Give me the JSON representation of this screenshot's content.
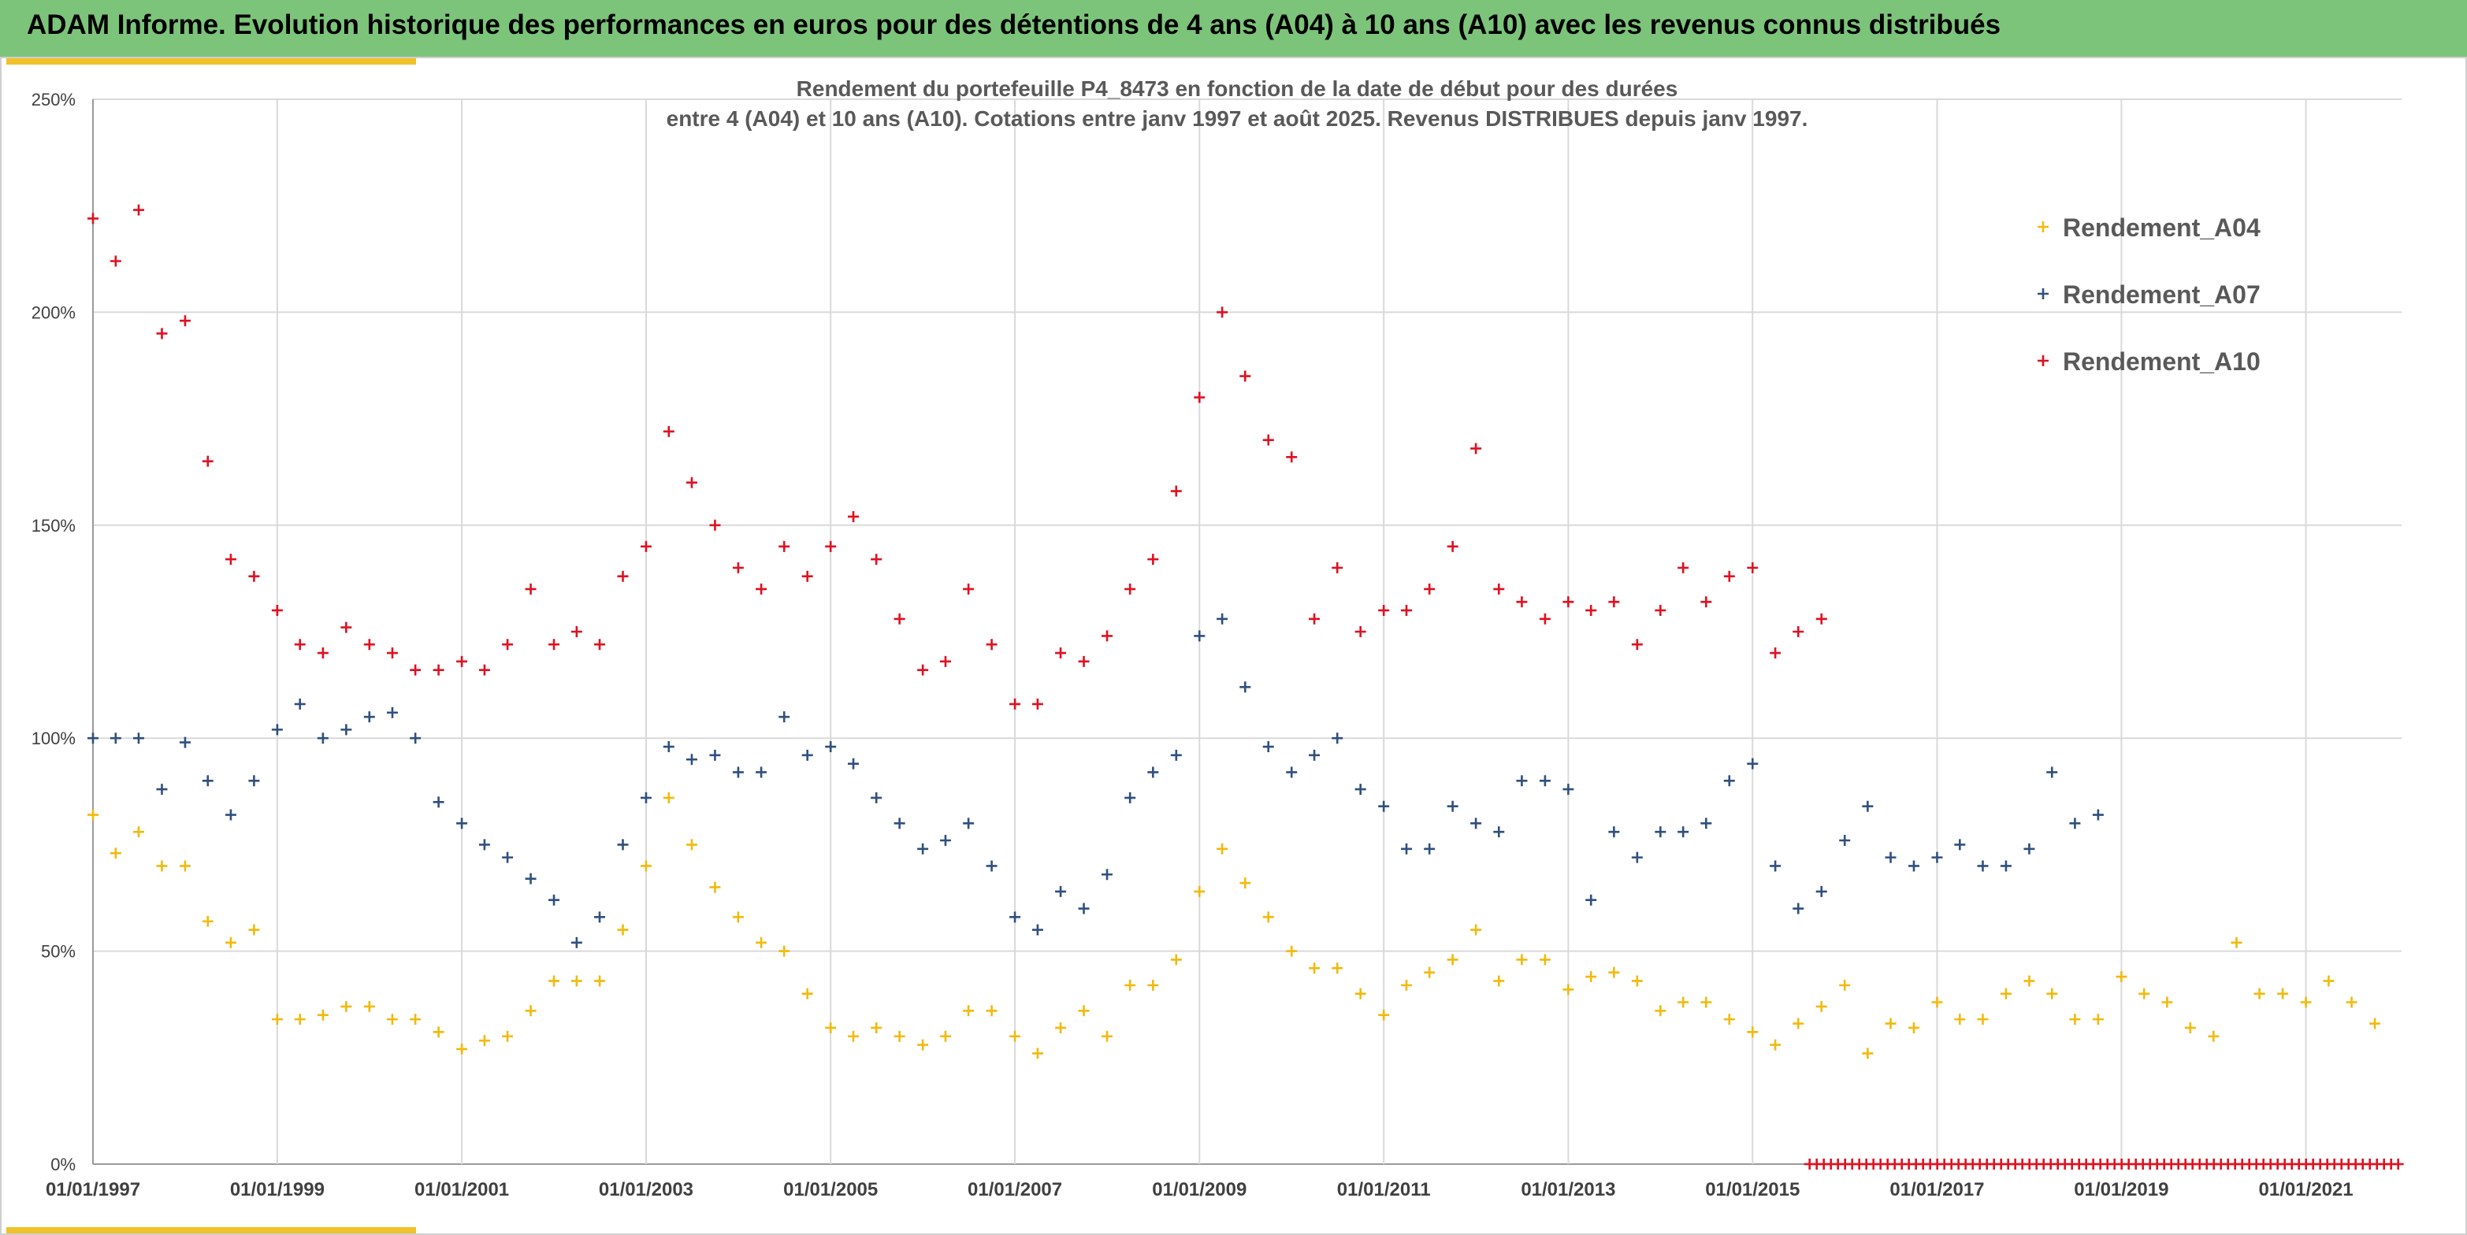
{
  "banner": {
    "title": "ADAM Informe. Evolution historique des performances en euros pour des détentions de 4 ans (A04) à 10 ans (A10) avec les revenus connus distribués"
  },
  "colors": {
    "banner_bg": "#7cc47a",
    "accent": "#f0c12b",
    "A04": "#f2b90c",
    "A07": "#2f4f7f",
    "A10": "#e01020",
    "grid": "#d9d9d9",
    "title_text": "#595959"
  },
  "chart_data": {
    "type": "scatter",
    "marker": "plus",
    "title": "Rendement du portefeuille P4_8473 en fonction de la date de début pour des durées",
    "subtitle": "entre 4 (A04) et 10 ans (A10). Cotations entre janv 1997 et août 2025. Revenus DISTRIBUES depuis janv 1997.",
    "xlabel": "",
    "ylabel": "",
    "xlim": [
      "1997-01-01",
      "2022-01-15"
    ],
    "ylim": [
      0,
      2.5
    ],
    "y_ticks": [
      {
        "value": 0,
        "label": "0%"
      },
      {
        "value": 0.5,
        "label": "50%"
      },
      {
        "value": 1.0,
        "label": "100%"
      },
      {
        "value": 1.5,
        "label": "150%"
      },
      {
        "value": 2.0,
        "label": "200%"
      },
      {
        "value": 2.5,
        "label": "250%"
      }
    ],
    "x_ticks": [
      "01/01/1997",
      "01/01/1999",
      "01/01/2001",
      "01/01/2003",
      "01/01/2005",
      "01/01/2007",
      "01/01/2009",
      "01/01/2011",
      "01/01/2013",
      "01/01/2015",
      "01/01/2017",
      "01/01/2019",
      "01/01/2021"
    ],
    "grid": true,
    "legend_position": "top-right",
    "series": [
      {
        "name": "Rendement_A04",
        "key": "A04",
        "points": [
          [
            "1997-01-01",
            0.82
          ],
          [
            "1997-04-01",
            0.73
          ],
          [
            "1997-07-01",
            0.78
          ],
          [
            "1997-10-01",
            0.7
          ],
          [
            "1998-01-01",
            0.7
          ],
          [
            "1998-04-01",
            0.57
          ],
          [
            "1998-07-01",
            0.52
          ],
          [
            "1998-10-01",
            0.55
          ],
          [
            "1999-01-01",
            0.34
          ],
          [
            "1999-04-01",
            0.34
          ],
          [
            "1999-07-01",
            0.35
          ],
          [
            "1999-10-01",
            0.37
          ],
          [
            "2000-01-01",
            0.37
          ],
          [
            "2000-04-01",
            0.34
          ],
          [
            "2000-07-01",
            0.34
          ],
          [
            "2000-10-01",
            0.31
          ],
          [
            "2001-01-01",
            0.27
          ],
          [
            "2001-04-01",
            0.29
          ],
          [
            "2001-07-01",
            0.3
          ],
          [
            "2001-10-01",
            0.36
          ],
          [
            "2002-01-01",
            0.43
          ],
          [
            "2002-04-01",
            0.43
          ],
          [
            "2002-07-01",
            0.43
          ],
          [
            "2002-10-01",
            0.55
          ],
          [
            "2003-01-01",
            0.7
          ],
          [
            "2003-04-01",
            0.86
          ],
          [
            "2003-07-01",
            0.75
          ],
          [
            "2003-10-01",
            0.65
          ],
          [
            "2004-01-01",
            0.58
          ],
          [
            "2004-04-01",
            0.52
          ],
          [
            "2004-07-01",
            0.5
          ],
          [
            "2004-10-01",
            0.4
          ],
          [
            "2005-01-01",
            0.32
          ],
          [
            "2005-04-01",
            0.3
          ],
          [
            "2005-07-01",
            0.32
          ],
          [
            "2005-10-01",
            0.3
          ],
          [
            "2006-01-01",
            0.28
          ],
          [
            "2006-04-01",
            0.3
          ],
          [
            "2006-07-01",
            0.36
          ],
          [
            "2006-10-01",
            0.36
          ],
          [
            "2007-01-01",
            0.3
          ],
          [
            "2007-04-01",
            0.26
          ],
          [
            "2007-07-01",
            0.32
          ],
          [
            "2007-10-01",
            0.36
          ],
          [
            "2008-01-01",
            0.3
          ],
          [
            "2008-04-01",
            0.42
          ],
          [
            "2008-07-01",
            0.42
          ],
          [
            "2008-10-01",
            0.48
          ],
          [
            "2009-01-01",
            0.64
          ],
          [
            "2009-04-01",
            0.74
          ],
          [
            "2009-07-01",
            0.66
          ],
          [
            "2009-10-01",
            0.58
          ],
          [
            "2010-01-01",
            0.5
          ],
          [
            "2010-04-01",
            0.46
          ],
          [
            "2010-07-01",
            0.46
          ],
          [
            "2010-10-01",
            0.4
          ],
          [
            "2011-01-01",
            0.35
          ],
          [
            "2011-04-01",
            0.42
          ],
          [
            "2011-07-01",
            0.45
          ],
          [
            "2011-10-01",
            0.48
          ],
          [
            "2012-01-01",
            0.55
          ],
          [
            "2012-04-01",
            0.43
          ],
          [
            "2012-07-01",
            0.48
          ],
          [
            "2012-10-01",
            0.48
          ],
          [
            "2013-01-01",
            0.41
          ],
          [
            "2013-04-01",
            0.44
          ],
          [
            "2013-07-01",
            0.45
          ],
          [
            "2013-10-01",
            0.43
          ],
          [
            "2014-01-01",
            0.36
          ],
          [
            "2014-04-01",
            0.38
          ],
          [
            "2014-07-01",
            0.38
          ],
          [
            "2014-10-01",
            0.34
          ],
          [
            "2015-01-01",
            0.31
          ],
          [
            "2015-04-01",
            0.28
          ],
          [
            "2015-07-01",
            0.33
          ],
          [
            "2015-10-01",
            0.37
          ],
          [
            "2016-01-01",
            0.42
          ],
          [
            "2016-04-01",
            0.26
          ],
          [
            "2016-07-01",
            0.33
          ],
          [
            "2016-10-01",
            0.32
          ],
          [
            "2017-01-01",
            0.38
          ],
          [
            "2017-04-01",
            0.34
          ],
          [
            "2017-07-01",
            0.34
          ],
          [
            "2017-10-01",
            0.4
          ],
          [
            "2018-01-01",
            0.43
          ],
          [
            "2018-04-01",
            0.4
          ],
          [
            "2018-07-01",
            0.34
          ],
          [
            "2018-10-01",
            0.34
          ],
          [
            "2019-01-01",
            0.44
          ],
          [
            "2019-04-01",
            0.4
          ],
          [
            "2019-07-01",
            0.38
          ],
          [
            "2019-10-01",
            0.32
          ],
          [
            "2020-01-01",
            0.3
          ],
          [
            "2020-04-01",
            0.52
          ],
          [
            "2020-07-01",
            0.4
          ],
          [
            "2020-10-01",
            0.4
          ],
          [
            "2021-01-01",
            0.38
          ],
          [
            "2021-04-01",
            0.43
          ],
          [
            "2021-07-01",
            0.38
          ],
          [
            "2021-10-01",
            0.33
          ]
        ]
      },
      {
        "name": "Rendement_A07",
        "key": "A07",
        "points": [
          [
            "1997-01-01",
            1.0
          ],
          [
            "1997-04-01",
            1.0
          ],
          [
            "1997-07-01",
            1.0
          ],
          [
            "1997-10-01",
            0.88
          ],
          [
            "1998-01-01",
            0.99
          ],
          [
            "1998-04-01",
            0.9
          ],
          [
            "1998-07-01",
            0.82
          ],
          [
            "1998-10-01",
            0.9
          ],
          [
            "1999-01-01",
            1.02
          ],
          [
            "1999-04-01",
            1.08
          ],
          [
            "1999-07-01",
            1.0
          ],
          [
            "1999-10-01",
            1.02
          ],
          [
            "2000-01-01",
            1.05
          ],
          [
            "2000-04-01",
            1.06
          ],
          [
            "2000-07-01",
            1.0
          ],
          [
            "2000-10-01",
            0.85
          ],
          [
            "2001-01-01",
            0.8
          ],
          [
            "2001-04-01",
            0.75
          ],
          [
            "2001-07-01",
            0.72
          ],
          [
            "2001-10-01",
            0.67
          ],
          [
            "2002-01-01",
            0.62
          ],
          [
            "2002-04-01",
            0.52
          ],
          [
            "2002-07-01",
            0.58
          ],
          [
            "2002-10-01",
            0.75
          ],
          [
            "2003-01-01",
            0.86
          ],
          [
            "2003-04-01",
            0.98
          ],
          [
            "2003-07-01",
            0.95
          ],
          [
            "2003-10-01",
            0.96
          ],
          [
            "2004-01-01",
            0.92
          ],
          [
            "2004-04-01",
            0.92
          ],
          [
            "2004-07-01",
            1.05
          ],
          [
            "2004-10-01",
            0.96
          ],
          [
            "2005-01-01",
            0.98
          ],
          [
            "2005-04-01",
            0.94
          ],
          [
            "2005-07-01",
            0.86
          ],
          [
            "2005-10-01",
            0.8
          ],
          [
            "2006-01-01",
            0.74
          ],
          [
            "2006-04-01",
            0.76
          ],
          [
            "2006-07-01",
            0.8
          ],
          [
            "2006-10-01",
            0.7
          ],
          [
            "2007-01-01",
            0.58
          ],
          [
            "2007-04-01",
            0.55
          ],
          [
            "2007-07-01",
            0.64
          ],
          [
            "2007-10-01",
            0.6
          ],
          [
            "2008-01-01",
            0.68
          ],
          [
            "2008-04-01",
            0.86
          ],
          [
            "2008-07-01",
            0.92
          ],
          [
            "2008-10-01",
            0.96
          ],
          [
            "2009-01-01",
            1.24
          ],
          [
            "2009-04-01",
            1.28
          ],
          [
            "2009-07-01",
            1.12
          ],
          [
            "2009-10-01",
            0.98
          ],
          [
            "2010-01-01",
            0.92
          ],
          [
            "2010-04-01",
            0.96
          ],
          [
            "2010-07-01",
            1.0
          ],
          [
            "2010-10-01",
            0.88
          ],
          [
            "2011-01-01",
            0.84
          ],
          [
            "2011-04-01",
            0.74
          ],
          [
            "2011-07-01",
            0.74
          ],
          [
            "2011-10-01",
            0.84
          ],
          [
            "2012-01-01",
            0.8
          ],
          [
            "2012-04-01",
            0.78
          ],
          [
            "2012-07-01",
            0.9
          ],
          [
            "2012-10-01",
            0.9
          ],
          [
            "2013-01-01",
            0.88
          ],
          [
            "2013-04-01",
            0.62
          ],
          [
            "2013-07-01",
            0.78
          ],
          [
            "2013-10-01",
            0.72
          ],
          [
            "2014-01-01",
            0.78
          ],
          [
            "2014-04-01",
            0.78
          ],
          [
            "2014-07-01",
            0.8
          ],
          [
            "2014-10-01",
            0.9
          ],
          [
            "2015-01-01",
            0.94
          ],
          [
            "2015-04-01",
            0.7
          ],
          [
            "2015-07-01",
            0.6
          ],
          [
            "2015-10-01",
            0.64
          ],
          [
            "2016-01-01",
            0.76
          ],
          [
            "2016-04-01",
            0.84
          ],
          [
            "2016-07-01",
            0.72
          ],
          [
            "2016-10-01",
            0.7
          ],
          [
            "2017-01-01",
            0.72
          ],
          [
            "2017-04-01",
            0.75
          ],
          [
            "2017-07-01",
            0.7
          ],
          [
            "2017-10-01",
            0.7
          ],
          [
            "2018-01-01",
            0.74
          ],
          [
            "2018-04-01",
            0.92
          ],
          [
            "2018-07-01",
            0.8
          ],
          [
            "2018-10-01",
            0.82
          ]
        ]
      },
      {
        "name": "Rendement_A10",
        "key": "A10",
        "points": [
          [
            "1997-01-01",
            2.22
          ],
          [
            "1997-04-01",
            2.12
          ],
          [
            "1997-07-01",
            2.24
          ],
          [
            "1997-10-01",
            1.95
          ],
          [
            "1998-01-01",
            1.98
          ],
          [
            "1998-04-01",
            1.65
          ],
          [
            "1998-07-01",
            1.42
          ],
          [
            "1998-10-01",
            1.38
          ],
          [
            "1999-01-01",
            1.3
          ],
          [
            "1999-04-01",
            1.22
          ],
          [
            "1999-07-01",
            1.2
          ],
          [
            "1999-10-01",
            1.26
          ],
          [
            "2000-01-01",
            1.22
          ],
          [
            "2000-04-01",
            1.2
          ],
          [
            "2000-07-01",
            1.16
          ],
          [
            "2000-10-01",
            1.16
          ],
          [
            "2001-01-01",
            1.18
          ],
          [
            "2001-04-01",
            1.16
          ],
          [
            "2001-07-01",
            1.22
          ],
          [
            "2001-10-01",
            1.35
          ],
          [
            "2002-01-01",
            1.22
          ],
          [
            "2002-04-01",
            1.25
          ],
          [
            "2002-07-01",
            1.22
          ],
          [
            "2002-10-01",
            1.38
          ],
          [
            "2003-01-01",
            1.45
          ],
          [
            "2003-04-01",
            1.72
          ],
          [
            "2003-07-01",
            1.6
          ],
          [
            "2003-10-01",
            1.5
          ],
          [
            "2004-01-01",
            1.4
          ],
          [
            "2004-04-01",
            1.35
          ],
          [
            "2004-07-01",
            1.45
          ],
          [
            "2004-10-01",
            1.38
          ],
          [
            "2005-01-01",
            1.45
          ],
          [
            "2005-04-01",
            1.52
          ],
          [
            "2005-07-01",
            1.42
          ],
          [
            "2005-10-01",
            1.28
          ],
          [
            "2006-01-01",
            1.16
          ],
          [
            "2006-04-01",
            1.18
          ],
          [
            "2006-07-01",
            1.35
          ],
          [
            "2006-10-01",
            1.22
          ],
          [
            "2007-01-01",
            1.08
          ],
          [
            "2007-04-01",
            1.08
          ],
          [
            "2007-07-01",
            1.2
          ],
          [
            "2007-10-01",
            1.18
          ],
          [
            "2008-01-01",
            1.24
          ],
          [
            "2008-04-01",
            1.35
          ],
          [
            "2008-07-01",
            1.42
          ],
          [
            "2008-10-01",
            1.58
          ],
          [
            "2009-01-01",
            1.8
          ],
          [
            "2009-04-01",
            2.0
          ],
          [
            "2009-07-01",
            1.85
          ],
          [
            "2009-10-01",
            1.7
          ],
          [
            "2010-01-01",
            1.66
          ],
          [
            "2010-04-01",
            1.28
          ],
          [
            "2010-07-01",
            1.4
          ],
          [
            "2010-10-01",
            1.25
          ],
          [
            "2011-01-01",
            1.3
          ],
          [
            "2011-04-01",
            1.3
          ],
          [
            "2011-07-01",
            1.35
          ],
          [
            "2011-10-01",
            1.45
          ],
          [
            "2012-01-01",
            1.68
          ],
          [
            "2012-04-01",
            1.35
          ],
          [
            "2012-07-01",
            1.32
          ],
          [
            "2012-10-01",
            1.28
          ],
          [
            "2013-01-01",
            1.32
          ],
          [
            "2013-04-01",
            1.3
          ],
          [
            "2013-07-01",
            1.32
          ],
          [
            "2013-10-01",
            1.22
          ],
          [
            "2014-01-01",
            1.3
          ],
          [
            "2014-04-01",
            1.4
          ],
          [
            "2014-07-01",
            1.32
          ],
          [
            "2014-10-01",
            1.38
          ],
          [
            "2015-01-01",
            1.4
          ],
          [
            "2015-04-01",
            1.2
          ],
          [
            "2015-07-01",
            1.25
          ],
          [
            "2015-10-01",
            1.28
          ]
        ]
      }
    ],
    "zero_band": {
      "series_key": "A10",
      "from": "2015-08-15",
      "to": "2022-01-15",
      "value": 0
    }
  }
}
